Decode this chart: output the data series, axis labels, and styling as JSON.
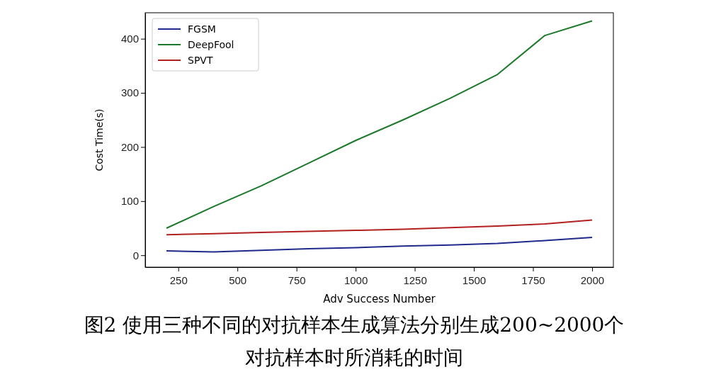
{
  "chart_data": {
    "type": "line",
    "xlabel": "Adv Success Number",
    "ylabel": "Cost Time(s)",
    "x": [
      200,
      400,
      600,
      800,
      1000,
      1200,
      1400,
      1600,
      1800,
      2000
    ],
    "series": [
      {
        "name": "FGSM",
        "color": "#1f2a8c",
        "values": [
          8,
          6,
          9,
          12,
          14,
          17,
          19,
          22,
          27,
          33
        ]
      },
      {
        "name": "DeepFool",
        "color": "#1a7a2a",
        "values": [
          50,
          90,
          128,
          170,
          212,
          250,
          290,
          334,
          406,
          433
        ]
      },
      {
        "name": "SPVT",
        "color": "#b22020",
        "values": [
          38,
          40,
          42,
          44,
          46,
          48,
          51,
          54,
          58,
          65
        ]
      }
    ],
    "xlim": [
      110,
      2090
    ],
    "ylim": [
      -22,
      448
    ],
    "xticks": [
      250,
      500,
      750,
      1000,
      1250,
      1500,
      1750,
      2000
    ],
    "yticks": [
      0,
      100,
      200,
      300,
      400
    ],
    "legend": "top left",
    "grid": false,
    "marker": "none",
    "line_style": "solid",
    "annotations": [
      "图2  使用三种不同的对抗样本生成算法分别生成200~2000个",
      "对抗样本时所消耗的时间"
    ]
  }
}
